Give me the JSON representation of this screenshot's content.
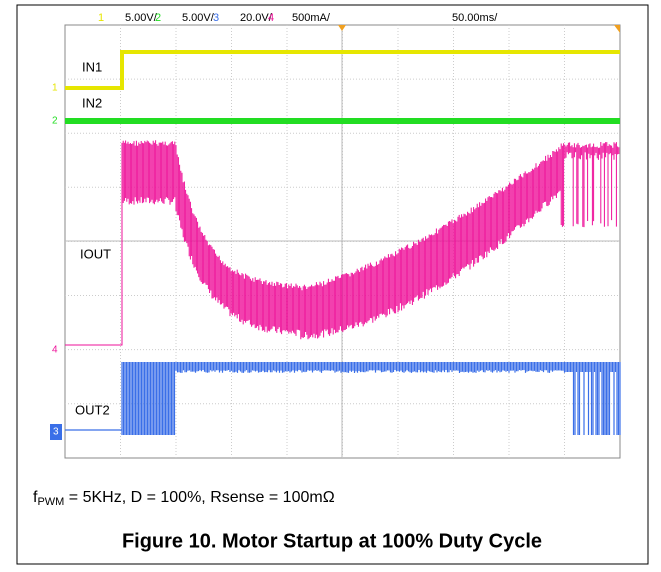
{
  "header": {
    "channels": [
      {
        "number": "1",
        "scale": "5.00V/",
        "color": "#e6e600"
      },
      {
        "number": "2",
        "scale": "5.00V/",
        "color": "#22dd22"
      },
      {
        "number": "3",
        "scale": "20.0V/",
        "color": "#3a6fe8"
      },
      {
        "number": "4",
        "scale": "500mA/",
        "color": "#ee1199"
      }
    ],
    "timebase": "50.00ms/"
  },
  "traces": [
    {
      "label": "IN1"
    },
    {
      "label": "IN2"
    },
    {
      "label": "IOUT"
    },
    {
      "label": "OUT2"
    }
  ],
  "caption": {
    "f": "f",
    "subscript": "PWM",
    "rest": " = 5KHz, D = 100%, Rsense = 100mΩ"
  },
  "title": "Figure 10. Motor Startup at 100% Duty Cycle"
}
